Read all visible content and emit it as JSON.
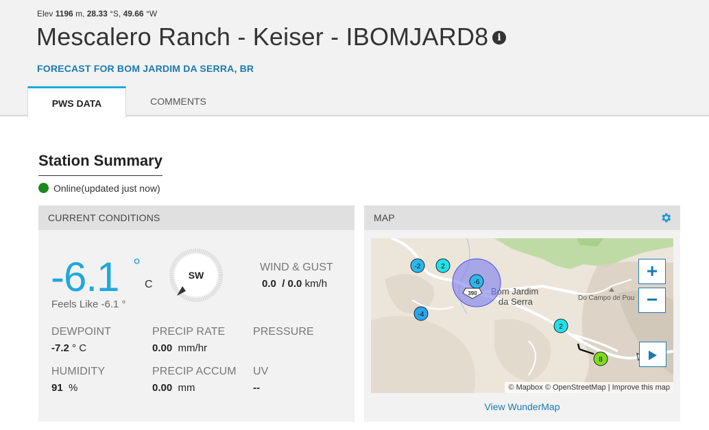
{
  "header": {
    "elev_prefix": "Elev ",
    "elev_value": "1196",
    "elev_unit": " m, ",
    "lat_value": "28.33",
    "lat_unit": " °S, ",
    "lon_value": "49.66",
    "lon_unit": " °W",
    "station_title": "Mescalero Ranch - Keiser - IBOMJARD8",
    "info_icon": "i",
    "forecast_link": "FORECAST FOR BOM JARDIM DA SERRA, BR"
  },
  "tabs": [
    {
      "label": "PWS DATA",
      "active": true
    },
    {
      "label": "COMMENTS",
      "active": false
    }
  ],
  "summary": {
    "title": "Station Summary",
    "status": "Online(updated just now)",
    "status_color": "#1d8a1d"
  },
  "conditions": {
    "header": "CURRENT CONDITIONS",
    "temperature": "-6.1",
    "temp_degree": "°",
    "temp_unit": "C",
    "feels_like": "Feels Like -6.1 °",
    "wind_direction": "SW",
    "wind_gust_label": "WIND & GUST",
    "wind_speed": "0.0",
    "gust_speed": "0.0",
    "wind_unit": "km/h",
    "dewpoint_label": "DEWPOINT",
    "dewpoint_value": "-7.2",
    "dewpoint_unit": "° C",
    "precip_rate_label": "PRECIP RATE",
    "precip_rate_value": "0.00",
    "precip_rate_unit": "mm/hr",
    "pressure_label": "PRESSURE",
    "pressure_value": "",
    "humidity_label": "HUMIDITY",
    "humidity_value": "91",
    "humidity_unit": "%",
    "precip_accum_label": "PRECIP ACCUM",
    "precip_accum_value": "0.00",
    "precip_accum_unit": "mm",
    "uv_label": "UV",
    "uv_value": "--"
  },
  "map": {
    "header": "MAP",
    "gear_icon": "gear-icon",
    "town_name_line1": "Bom Jardim",
    "town_name_line2": "da Serra",
    "place_label": "Do Campo de Pou",
    "road_shield": "390",
    "markers": [
      {
        "value": "-2",
        "color": "#2ab8f0"
      },
      {
        "value": "2",
        "color": "#22e0e8"
      },
      {
        "value": "-6",
        "color": "#2ab8f0"
      },
      {
        "value": "-4",
        "color": "#2aa6ee"
      },
      {
        "value": "2",
        "color": "#22e0e8"
      },
      {
        "value": "8",
        "color": "#7ddc1f"
      }
    ],
    "zoom_in": "+",
    "zoom_out": "−",
    "play_icon": "play-icon",
    "attribution": "© Mapbox © OpenStreetMap | Improve this map",
    "view_link": "View WunderMap"
  },
  "colors": {
    "accent": "#1ea7e0",
    "link": "#1a7ab0",
    "online": "#1d8a1d",
    "tab_active_border": "#1ea7e0"
  }
}
